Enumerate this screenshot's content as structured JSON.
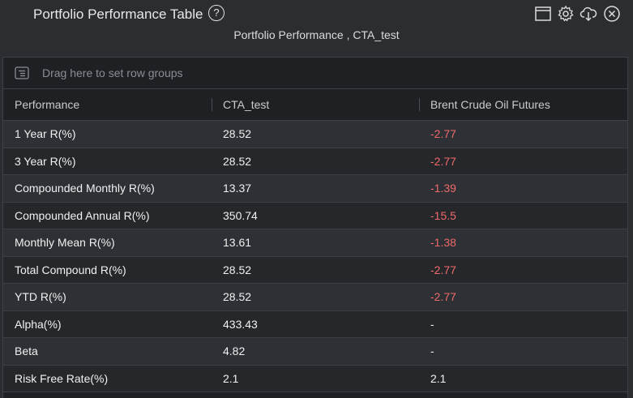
{
  "header": {
    "title": "Portfolio Performance Table",
    "help_glyph": "?",
    "subtitle": "Portfolio Performance , CTA_test"
  },
  "toolbar": {
    "icons": [
      "window-icon",
      "gear-icon",
      "cloud-download-icon",
      "close-icon"
    ]
  },
  "grid": {
    "group_bar_text": "Drag here to set row groups",
    "columns": [
      "Performance",
      "CTA_test",
      "Brent Crude Oil Futures"
    ],
    "rows": [
      {
        "label": "1 Year R(%)",
        "cta": "28.52",
        "brent": "-2.77"
      },
      {
        "label": "3 Year R(%)",
        "cta": "28.52",
        "brent": "-2.77"
      },
      {
        "label": "Compounded Monthly R(%)",
        "cta": "13.37",
        "brent": "-1.39"
      },
      {
        "label": "Compounded Annual R(%)",
        "cta": "350.74",
        "brent": "-15.5"
      },
      {
        "label": "Monthly Mean R(%)",
        "cta": "13.61",
        "brent": "-1.38"
      },
      {
        "label": "Total Compound R(%)",
        "cta": "28.52",
        "brent": "-2.77"
      },
      {
        "label": "YTD R(%)",
        "cta": "28.52",
        "brent": "-2.77"
      },
      {
        "label": "Alpha(%)",
        "cta": "433.43",
        "brent": "-"
      },
      {
        "label": "Beta",
        "cta": "4.82",
        "brent": "-"
      },
      {
        "label": "Risk Free Rate(%)",
        "cta": "2.1",
        "brent": "2.1"
      }
    ]
  },
  "colors": {
    "background": "#2b2d31",
    "grid_background": "#1e2023",
    "negative": "#f06a6a"
  }
}
